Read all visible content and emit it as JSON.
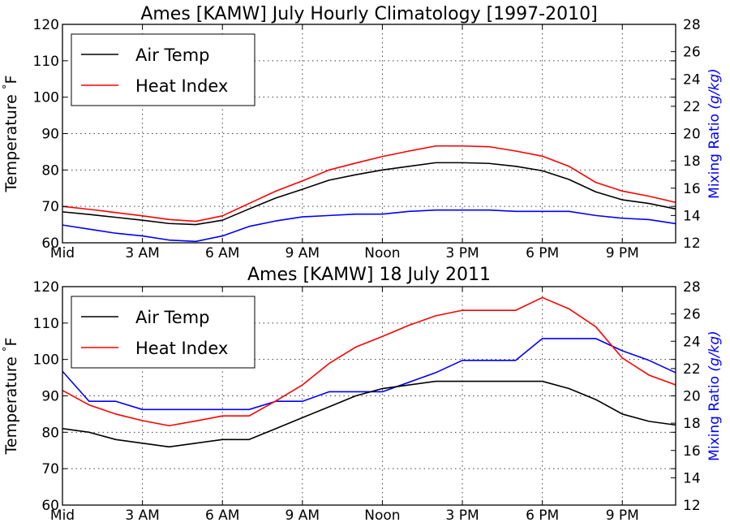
{
  "chart_data": [
    {
      "type": "line",
      "title": "Ames [KAMW] July Hourly Climatology [1997-2010]",
      "ylabel": "Temperature $^\\circ$F",
      "y2label": "Mixing Ratio $(g/kg)$",
      "ylim": [
        60,
        120
      ],
      "y2lim": [
        12,
        28
      ],
      "yticks": [
        "60",
        "70",
        "80",
        "90",
        "100",
        "110",
        "120"
      ],
      "y2ticks": [
        "12",
        "14",
        "16",
        "18",
        "20",
        "22",
        "24",
        "26",
        "28"
      ],
      "xlim": [
        0,
        23
      ],
      "xticks": [
        0,
        3,
        6,
        9,
        12,
        15,
        18,
        21
      ],
      "xticklabels": [
        "Mid",
        "3 AM",
        "6 AM",
        "9 AM",
        "Noon",
        "3 PM",
        "6 PM",
        "9 PM"
      ],
      "grid": true,
      "legend": {
        "position": "upper-left",
        "entries": [
          "Air Temp",
          "Heat Index"
        ]
      },
      "x": [
        0,
        1,
        2,
        3,
        4,
        5,
        6,
        7,
        8,
        9,
        10,
        11,
        12,
        13,
        14,
        15,
        16,
        17,
        18,
        19,
        20,
        21,
        22,
        23
      ],
      "series": [
        {
          "name": "Air Temp",
          "axis": "left",
          "color": "#000000",
          "values": [
            68.5,
            67.8,
            67.0,
            66.2,
            65.3,
            65.0,
            66.2,
            69.3,
            72.3,
            74.7,
            77.2,
            78.7,
            80.0,
            81.0,
            82.0,
            82.0,
            81.8,
            81.0,
            79.8,
            77.4,
            74.0,
            71.8,
            70.8,
            69.3
          ]
        },
        {
          "name": "Heat Index",
          "axis": "left",
          "color": "#ff0000",
          "values": [
            70.0,
            69.2,
            68.3,
            67.4,
            66.4,
            65.9,
            67.4,
            70.8,
            74.2,
            77.0,
            80.0,
            81.9,
            83.7,
            85.2,
            86.6,
            86.6,
            86.4,
            85.2,
            83.8,
            81.0,
            76.6,
            74.2,
            72.8,
            71.1
          ]
        },
        {
          "axis": "right",
          "color": "#0000ff",
          "values": [
            13.3,
            13.0,
            12.7,
            12.5,
            12.2,
            12.1,
            12.5,
            13.2,
            13.6,
            13.9,
            14.0,
            14.1,
            14.1,
            14.3,
            14.4,
            14.4,
            14.4,
            14.3,
            14.3,
            14.3,
            14.0,
            13.8,
            13.7,
            13.4
          ]
        }
      ]
    },
    {
      "type": "line",
      "title": "Ames [KAMW] 18 July 2011",
      "ylabel": "Temperature $^\\circ$F",
      "y2label": "Mixing Ratio $(g/kg)$",
      "ylim": [
        60,
        120
      ],
      "y2lim": [
        12,
        28
      ],
      "yticks": [
        "60",
        "70",
        "80",
        "90",
        "100",
        "110",
        "120"
      ],
      "y2ticks": [
        "12",
        "14",
        "16",
        "18",
        "20",
        "22",
        "24",
        "26",
        "28"
      ],
      "xlim": [
        0,
        23
      ],
      "xticks": [
        0,
        3,
        6,
        9,
        12,
        15,
        18,
        21
      ],
      "xticklabels": [
        "Mid",
        "3 AM",
        "6 AM",
        "9 AM",
        "Noon",
        "3 PM",
        "6 PM",
        "9 PM"
      ],
      "grid": true,
      "legend": {
        "position": "upper-left",
        "entries": [
          "Air Temp",
          "Heat Index"
        ]
      },
      "x": [
        0,
        1,
        2,
        3,
        4,
        5,
        6,
        7,
        8,
        9,
        10,
        11,
        12,
        13,
        14,
        15,
        16,
        17,
        18,
        19,
        20,
        21,
        22,
        23
      ],
      "series": [
        {
          "name": "Air Temp",
          "axis": "left",
          "color": "#000000",
          "values": [
            81.0,
            80.0,
            78.0,
            77.0,
            76.0,
            77.0,
            78.0,
            78.0,
            81.0,
            84.0,
            87.0,
            90.0,
            92.0,
            93.0,
            94.0,
            94.0,
            94.0,
            94.0,
            94.0,
            92.0,
            89.0,
            85.0,
            83.0,
            82.0
          ]
        },
        {
          "name": "Heat Index",
          "axis": "left",
          "color": "#ff0000",
          "values": [
            91.5,
            87.5,
            85.0,
            83.2,
            81.8,
            83.1,
            84.5,
            84.5,
            88.6,
            93.0,
            98.9,
            103.4,
            106.3,
            109.4,
            112.0,
            113.5,
            113.5,
            113.5,
            117.0,
            113.9,
            109.0,
            100.4,
            95.7,
            93.0
          ]
        },
        {
          "axis": "right",
          "color": "#0000ff",
          "values": [
            21.8,
            19.6,
            19.6,
            19.0,
            19.0,
            19.0,
            19.0,
            19.0,
            19.6,
            19.6,
            20.3,
            20.3,
            20.3,
            21.0,
            21.7,
            22.6,
            22.6,
            22.6,
            24.2,
            24.2,
            24.2,
            23.3,
            22.6,
            21.7
          ]
        }
      ]
    }
  ]
}
